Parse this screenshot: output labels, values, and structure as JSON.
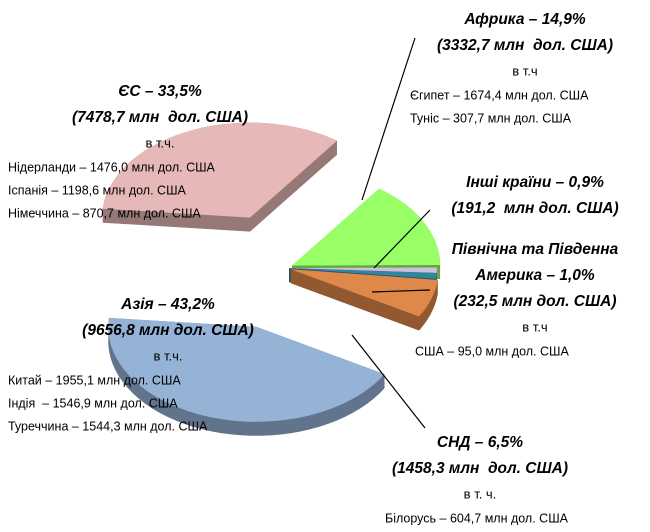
{
  "chart_data": {
    "type": "pie",
    "values": [
      14.9,
      0.9,
      1.0,
      6.5,
      43.2,
      33.5
    ],
    "value_labels": [
      "Африка – 14,9%",
      "Інші країни – 0,9%",
      "Америка – 1,0%",
      "СНД – 6,5%",
      "Азія – 43,2%",
      "ЄС – 33,5%"
    ],
    "colors": [
      "#99ff66",
      "#ccc0da",
      "#31859c",
      "#e0874a",
      "#95b3d7",
      "#e6b8b7"
    ],
    "annotations": [
      {
        "amount": "(3332,7 млн  дол. США)",
        "note": "в т.ч",
        "details": [
          "Єгипет – 1674,4 млн дол. США",
          "Туніс – 307,7 млн дол. США"
        ]
      },
      {
        "amount": "(191,2  млн дол. США)"
      },
      {
        "prefix": "Північна та Південна",
        "amount": "(232,5 млн дол. США)",
        "note": "в т.ч",
        "details": [
          "США – 95,0 млн дол. США"
        ]
      },
      {
        "amount": "(1458,3 млн  дол. США)",
        "note": "в т. ч.",
        "details": [
          "Білорусь – 604,7 млн дол. США"
        ]
      },
      {
        "amount": "(9656,8 млн дол. США)",
        "note": "в т.ч.",
        "details": [
          "Китай – 1955,1 млн дол. США",
          "Індія  – 1546,9 млн дол. США",
          "Туреччина – 1544,3 млн дол. США"
        ]
      },
      {
        "amount": "(7478,7 млн  дол. США)",
        "note": "в т.ч.",
        "details": [
          "Нідерланди – 1476,0 млн дол. США",
          "Іспанія – 1198,6 млн дол. США",
          "Німеччина – 870,7 млн дол. США"
        ]
      }
    ]
  }
}
